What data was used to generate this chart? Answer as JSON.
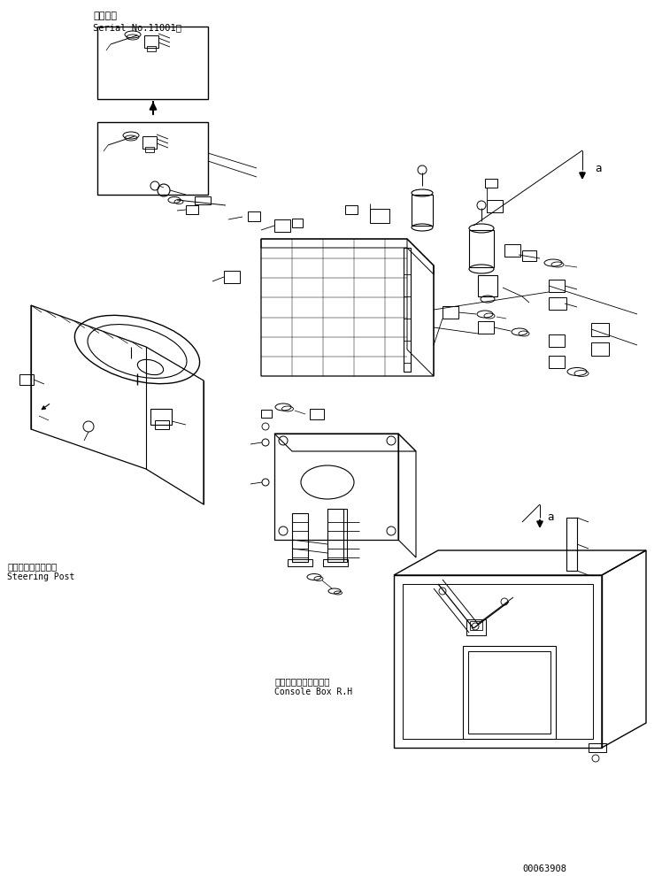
{
  "bg_color": "#ffffff",
  "line_color": "#000000",
  "title_jp": "適用号機",
  "title_serial": "Serial No.11001～",
  "label_steering_jp": "ステアリングポスト",
  "label_steering_en": "Steering Post",
  "label_console_jp": "コンソールボックス右",
  "label_console_en": "Console Box R.H",
  "label_a1": "a",
  "label_a2": "a",
  "part_number": "00063908",
  "fig_width": 7.48,
  "fig_height": 9.9
}
